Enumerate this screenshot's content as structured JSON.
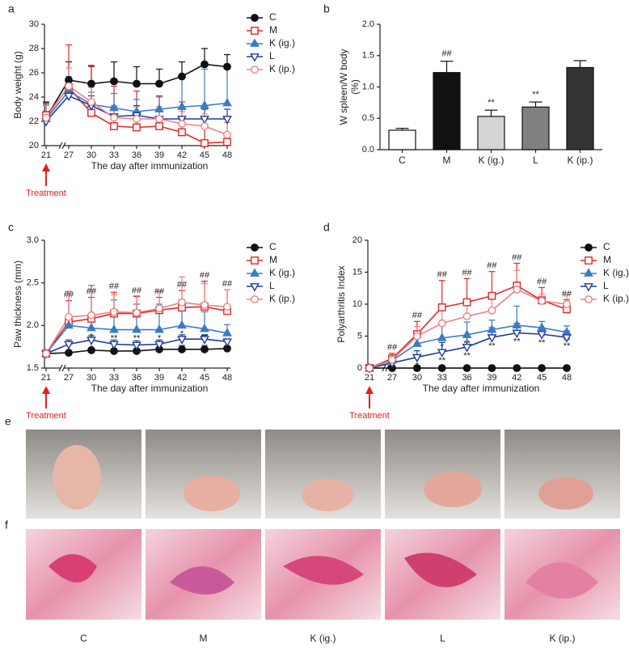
{
  "chart_data": [
    {
      "type": "line",
      "panel": "a",
      "ylabel": "Body weight (g)",
      "xlabel": "The day after immunization",
      "annotation": "Treatment",
      "annotation_color": "#e02020",
      "x": [
        21,
        27,
        30,
        33,
        36,
        39,
        42,
        45,
        48
      ],
      "xlim": [
        21,
        48
      ],
      "xbreak": [
        21,
        27
      ],
      "xticks": [
        21,
        27,
        30,
        33,
        36,
        39,
        42,
        45,
        48
      ],
      "ylim": [
        20,
        30
      ],
      "yticks": [
        20,
        22,
        24,
        26,
        28,
        30
      ],
      "series": [
        {
          "name": "C",
          "color": "#111111",
          "marker": "circle-filled",
          "values": [
            22.3,
            25.4,
            25.1,
            25.3,
            25.1,
            25.1,
            25.7,
            26.7,
            26.5
          ],
          "errors": [
            1.3,
            1.5,
            1.5,
            1.6,
            1.4,
            1.2,
            1.2,
            1.3,
            1.0
          ]
        },
        {
          "name": "M",
          "color": "#e02828",
          "marker": "square-open",
          "values": [
            22.5,
            24.8,
            22.7,
            21.6,
            21.5,
            21.6,
            21.1,
            20.2,
            20.3
          ],
          "errors": [
            1.0,
            3.5,
            3.8,
            3.3,
            3.0,
            2.5,
            2.5,
            2.0,
            2.0
          ]
        },
        {
          "name": "K (ig.)",
          "color": "#3a7cc4",
          "marker": "triangle-filled",
          "values": [
            22.2,
            24.5,
            23.4,
            23.1,
            22.8,
            23.0,
            23.2,
            23.3,
            23.5
          ],
          "errors": [
            1.2,
            1.2,
            1.0,
            1.2,
            1.0,
            1.0,
            2.5,
            3.0,
            3.0
          ]
        },
        {
          "name": "L",
          "color": "#1f3c99",
          "marker": "triangle-down-open",
          "values": [
            22.0,
            24.1,
            23.3,
            22.4,
            22.5,
            22.2,
            22.2,
            22.2,
            22.2
          ],
          "errors": [
            0.8,
            0.8,
            0.8,
            0.8,
            0.8,
            0.8,
            0.8,
            0.8,
            0.8
          ]
        },
        {
          "name": "K (ip.)",
          "color": "#f08080",
          "marker": "circle-open",
          "values": [
            22.3,
            24.9,
            23.6,
            22.3,
            22.2,
            22.2,
            21.8,
            21.6,
            20.9
          ],
          "errors": [
            1.0,
            1.5,
            1.2,
            1.0,
            1.0,
            1.0,
            1.0,
            1.0,
            1.0
          ]
        }
      ]
    },
    {
      "type": "bar",
      "panel": "b",
      "ylabel": [
        "W spleen/W body",
        "(%)"
      ],
      "categories": [
        "C",
        "M",
        "K (ig.)",
        "L",
        "K (ip.)"
      ],
      "values": [
        0.31,
        1.23,
        0.53,
        0.68,
        1.31
      ],
      "errors": [
        0.03,
        0.18,
        0.1,
        0.08,
        0.11
      ],
      "colors": [
        "#ffffff",
        "#111111",
        "#d4d4d4",
        "#808080",
        "#333333"
      ],
      "significance": [
        null,
        "##",
        "**",
        "**",
        null
      ],
      "ylim": [
        0,
        2.0
      ],
      "yticks": [
        {
          "value": 0,
          "label": "0.0"
        },
        0.5,
        {
          "value": 1,
          "label": "1.0"
        },
        1.5,
        {
          "value": 2,
          "label": "2.0"
        }
      ]
    },
    {
      "type": "line",
      "panel": "c",
      "ylabel": "Paw thickness (mm)",
      "xlabel": "The day after immunization",
      "annotation": "Treatment",
      "annotation_color": "#e02020",
      "x": [
        21,
        27,
        30,
        33,
        36,
        39,
        42,
        45,
        48
      ],
      "xlim": [
        21,
        48
      ],
      "xbreak": [
        21,
        27
      ],
      "xticks": [
        21,
        27,
        30,
        33,
        36,
        39,
        42,
        45,
        48
      ],
      "ylim": [
        1.5,
        3.0
      ],
      "yticks": [
        1.5,
        {
          "value": 2,
          "label": "2.0"
        },
        2.5,
        {
          "value": 3,
          "label": "3.0"
        }
      ],
      "series": [
        {
          "name": "C",
          "color": "#111111",
          "marker": "circle-filled",
          "values": [
            1.67,
            1.68,
            1.71,
            1.7,
            1.7,
            1.72,
            1.72,
            1.72,
            1.73
          ],
          "errors": [
            0.01,
            0.02,
            0.02,
            0.02,
            0.02,
            0.02,
            0.02,
            0.02,
            0.02
          ]
        },
        {
          "name": "M",
          "color": "#e02828",
          "marker": "square-open",
          "values": [
            1.67,
            2.04,
            2.08,
            2.14,
            2.14,
            2.18,
            2.21,
            2.22,
            2.17
          ],
          "errors": [
            0.01,
            0.25,
            0.25,
            0.25,
            0.2,
            0.15,
            0.2,
            0.3,
            0.25
          ],
          "significance": [
            null,
            "##",
            "##",
            "##",
            "##",
            "##",
            "##",
            "##",
            "##"
          ]
        },
        {
          "name": "K (ig.)",
          "color": "#3a7cc4",
          "marker": "triangle-filled",
          "values": [
            1.67,
            2.0,
            1.97,
            1.95,
            1.95,
            1.95,
            2.0,
            1.96,
            1.91
          ],
          "errors": [
            0.01,
            0.4,
            0.5,
            0.35,
            0.3,
            0.3,
            0.3,
            0.2,
            0.1
          ],
          "significance": [
            null,
            null,
            "*",
            "**",
            "**",
            "*",
            "*",
            "**",
            "**"
          ]
        },
        {
          "name": "L",
          "color": "#1f3c99",
          "marker": "triangle-down-open",
          "values": [
            1.67,
            1.78,
            1.83,
            1.78,
            1.77,
            1.78,
            1.84,
            1.84,
            1.81
          ],
          "errors": [
            0.01,
            0.05,
            0.05,
            0.05,
            0.05,
            0.05,
            0.05,
            0.05,
            0.03
          ],
          "significance": [
            null,
            "*",
            "*",
            "**",
            "**",
            "**",
            "**",
            "**",
            "**"
          ]
        },
        {
          "name": "K (ip.)",
          "color": "#f08080",
          "marker": "circle-open",
          "values": [
            1.67,
            2.1,
            2.12,
            2.16,
            2.15,
            2.2,
            2.27,
            2.24,
            2.22
          ],
          "errors": [
            0.01,
            0.3,
            0.3,
            0.2,
            0.2,
            0.2,
            0.3,
            0.25,
            0.2
          ]
        }
      ]
    },
    {
      "type": "line",
      "panel": "d",
      "ylabel": "Polyarthritis Index",
      "xlabel": "The day after immunization",
      "annotation": "Treatment",
      "annotation_color": "#e02020",
      "x": [
        21,
        27,
        30,
        33,
        36,
        39,
        42,
        45,
        48
      ],
      "xlim": [
        21,
        48
      ],
      "xbreak": [
        21,
        27
      ],
      "xticks": [
        21,
        27,
        30,
        33,
        36,
        39,
        42,
        45,
        48
      ],
      "ylim": [
        0,
        20
      ],
      "yticks": [
        0,
        5,
        10,
        15,
        20
      ],
      "series": [
        {
          "name": "C",
          "color": "#111111",
          "marker": "circle-filled",
          "values": [
            0,
            0,
            0,
            0,
            0,
            0,
            0,
            0,
            0
          ],
          "errors": [
            0,
            0,
            0,
            0,
            0,
            0,
            0,
            0,
            0
          ]
        },
        {
          "name": "M",
          "color": "#e02828",
          "marker": "square-open",
          "values": [
            0,
            1.5,
            5.3,
            9.5,
            10.3,
            11.3,
            12.9,
            10.6,
            9.2
          ],
          "errors": [
            0,
            0.8,
            2,
            4.2,
            3.7,
            3.8,
            3.5,
            2,
            1.5
          ],
          "significance": [
            null,
            "##",
            "##",
            "##",
            "##",
            "##",
            "##",
            "##",
            "##"
          ]
        },
        {
          "name": "K (ig.)",
          "color": "#3a7cc4",
          "marker": "triangle-filled",
          "values": [
            0,
            1.2,
            3.8,
            4.7,
            5.2,
            6.0,
            6.7,
            6.3,
            5.6
          ],
          "errors": [
            0,
            0.5,
            1.5,
            2,
            2,
            1.5,
            3,
            1,
            1
          ],
          "significance": [
            null,
            null,
            null,
            "*",
            "**",
            "**",
            "**",
            "**",
            "**"
          ]
        },
        {
          "name": "L",
          "color": "#1f3c99",
          "marker": "triangle-down-open",
          "values": [
            0,
            0.8,
            1.7,
            2.5,
            3.3,
            4.8,
            5.5,
            5.3,
            4.8
          ],
          "errors": [
            0,
            0.5,
            1,
            1.5,
            1.5,
            1.5,
            1.5,
            1,
            1
          ],
          "significance": [
            null,
            null,
            "*",
            "**",
            "**",
            "**",
            "**",
            "**",
            "**"
          ]
        },
        {
          "name": "K (ip.)",
          "color": "#f08080",
          "marker": "circle-open",
          "values": [
            0,
            1.3,
            5.0,
            7.0,
            8.1,
            9.0,
            12.3,
            10.5,
            10.0
          ],
          "errors": [
            0,
            0.5,
            1.5,
            2,
            2,
            2,
            3,
            1,
            1.5
          ]
        }
      ]
    }
  ],
  "photos": {
    "e": {
      "panel": "e"
    },
    "f": {
      "panel": "f",
      "captions": [
        "C",
        "M",
        "K (ig.)",
        "L",
        "K (ip.)"
      ]
    }
  }
}
